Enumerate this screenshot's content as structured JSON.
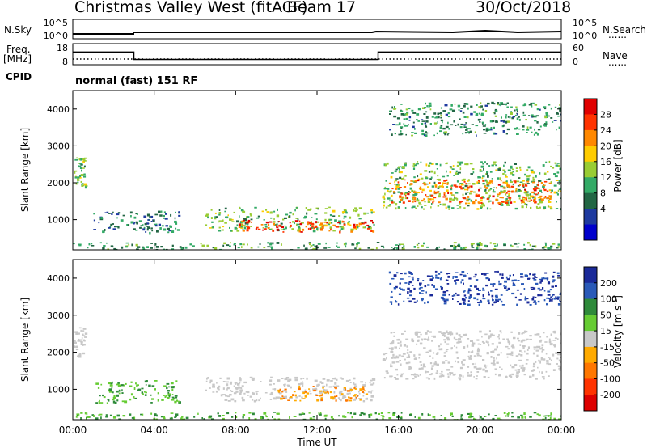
{
  "header": {
    "title": "Christmas Valley West (fitACF)",
    "beam": "Beam 17",
    "date": "30/Oct/2018"
  },
  "side_labels": {
    "nsky": "N.Sky",
    "nsearch": "N.Search",
    "freq": "Freq.",
    "mhz": "[MHz]",
    "nave": "Nave",
    "cpid": "CPID",
    "dots": "......"
  },
  "noise_panel": {
    "ticks_left": [
      "10^5",
      "10^0"
    ],
    "ticks_right": [
      "10^5",
      "10^0"
    ]
  },
  "freq_panel": {
    "ticks_left": [
      "18",
      "8"
    ],
    "ticks_right": [
      "60",
      "0"
    ]
  },
  "cpid_text": "normal (fast) 151 RF",
  "power_colorbar": {
    "label": "Power [dB]",
    "ticks": [
      "28",
      "24",
      "20",
      "16",
      "12",
      "8",
      "4"
    ],
    "colors": [
      "#e00000",
      "#ff3300",
      "#ff8800",
      "#ffcc00",
      "#99cc33",
      "#33aa66",
      "#226644",
      "#1e3a9f",
      "#0000cc"
    ]
  },
  "velocity_colorbar": {
    "label": "Velocity [m s",
    "label_sup": "-1",
    "ticks": [
      "200",
      "100",
      "50",
      "15",
      "-15",
      "-50",
      "-100",
      "-200"
    ],
    "colors": [
      "#1a2a99",
      "#2a5ab8",
      "#2e8a3a",
      "#66cc33",
      "#c8c8c8",
      "#ffaa00",
      "#ff7700",
      "#ff3300",
      "#dd0000"
    ]
  },
  "chart_data": {
    "type": "heatmap",
    "xlabel": "Time UT",
    "ylabel": "Slant Range [km]",
    "x_ticks": [
      "00:00",
      "04:00",
      "08:00",
      "12:00",
      "16:00",
      "20:00",
      "00:00"
    ],
    "y_ticks": [
      "4000",
      "3000",
      "2000",
      "1000"
    ],
    "xlim_hours": [
      0,
      24
    ],
    "ylim_km": [
      180,
      4500
    ],
    "frequency_mhz": {
      "x_hours": [
        0,
        3,
        3,
        15,
        15,
        24
      ],
      "y": [
        14,
        14,
        10.5,
        10.5,
        14,
        14
      ]
    },
    "power_regions": [
      {
        "t0": 0.0,
        "t1": 0.6,
        "r0": 1900,
        "r1": 2700,
        "power_db": 14
      },
      {
        "t0": 1.0,
        "t1": 5.2,
        "r0": 650,
        "r1": 1250,
        "power_db": 8
      },
      {
        "t0": 6.5,
        "t1": 14.8,
        "r0": 700,
        "r1": 1350,
        "power_db": 14
      },
      {
        "t0": 8.0,
        "t1": 14.8,
        "r0": 680,
        "r1": 1000,
        "power_db": 28
      },
      {
        "t0": 15.2,
        "t1": 24.0,
        "r0": 1300,
        "r1": 2600,
        "power_db": 14
      },
      {
        "t0": 15.5,
        "t1": 23.5,
        "r0": 1450,
        "r1": 2100,
        "power_db": 26
      },
      {
        "t0": 15.5,
        "t1": 24.0,
        "r0": 3300,
        "r1": 4200,
        "power_db": 10
      },
      {
        "t0": 0.0,
        "t1": 24.0,
        "r0": 180,
        "r1": 400,
        "power_db": 12
      }
    ],
    "velocity_regions": [
      {
        "t0": 0.0,
        "t1": 0.6,
        "r0": 1900,
        "r1": 2700,
        "velocity": 0
      },
      {
        "t0": 1.0,
        "t1": 5.2,
        "r0": 650,
        "r1": 1250,
        "velocity": 30
      },
      {
        "t0": 6.5,
        "t1": 14.8,
        "r0": 700,
        "r1": 1350,
        "velocity": 0
      },
      {
        "t0": 10.0,
        "t1": 14.5,
        "r0": 700,
        "r1": 1100,
        "velocity": -30
      },
      {
        "t0": 15.2,
        "t1": 24.0,
        "r0": 1300,
        "r1": 2600,
        "velocity": 0
      },
      {
        "t0": 15.5,
        "t1": 24.0,
        "r0": 3300,
        "r1": 4200,
        "velocity": 150
      },
      {
        "t0": 0.0,
        "t1": 24.0,
        "r0": 180,
        "r1": 400,
        "velocity": 30
      }
    ]
  }
}
